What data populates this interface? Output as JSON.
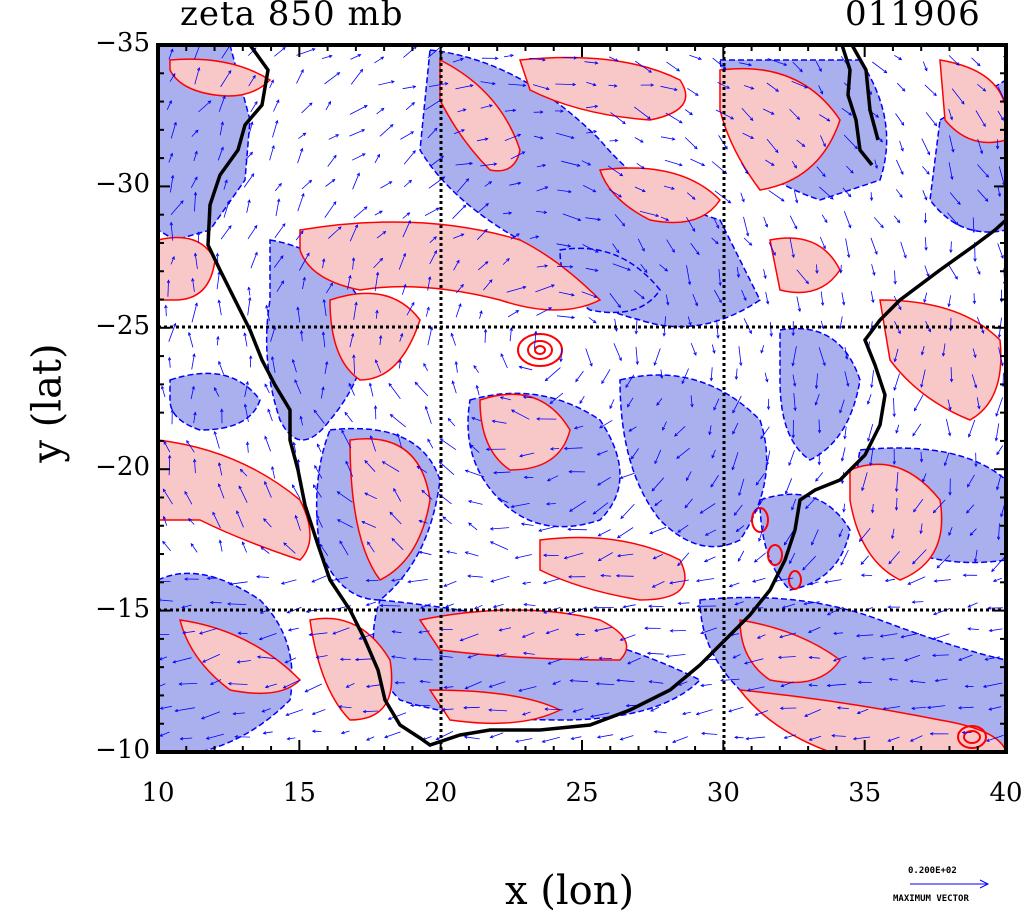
{
  "title_left": "zeta 850 mb",
  "title_right": "011906",
  "xlabel": "x (lon)",
  "ylabel": "y (lat)",
  "x_ticks": [
    "10",
    "15",
    "20",
    "25",
    "30",
    "35",
    "40"
  ],
  "y_ticks": [
    "−35",
    "−30",
    "−25",
    "−20",
    "−15",
    "−10"
  ],
  "vector_key": {
    "value": "0.200E+02",
    "caption": "MAXIMUM VECTOR"
  },
  "colors": {
    "positive_fill": "#f8c8c8",
    "positive_line": "#ff0000",
    "negative_fill": "#aab0ee",
    "negative_line": "#0000ff",
    "coast": "#000000",
    "grid": "#000000"
  },
  "chart_data": {
    "type": "heatmap",
    "title": "zeta 850 mb",
    "date_label": "011906",
    "xlabel": "x (lon)",
    "ylabel": "y (lat)",
    "xlim": [
      10,
      40
    ],
    "ylim": [
      -35,
      -10
    ],
    "y_axis_direction": "-35 at top, -10 at bottom",
    "gridlines_x": [
      20,
      30
    ],
    "gridlines_y": [
      -25,
      -15
    ],
    "overlay": "wind vectors",
    "legend": "vector key bottom-right"
  }
}
